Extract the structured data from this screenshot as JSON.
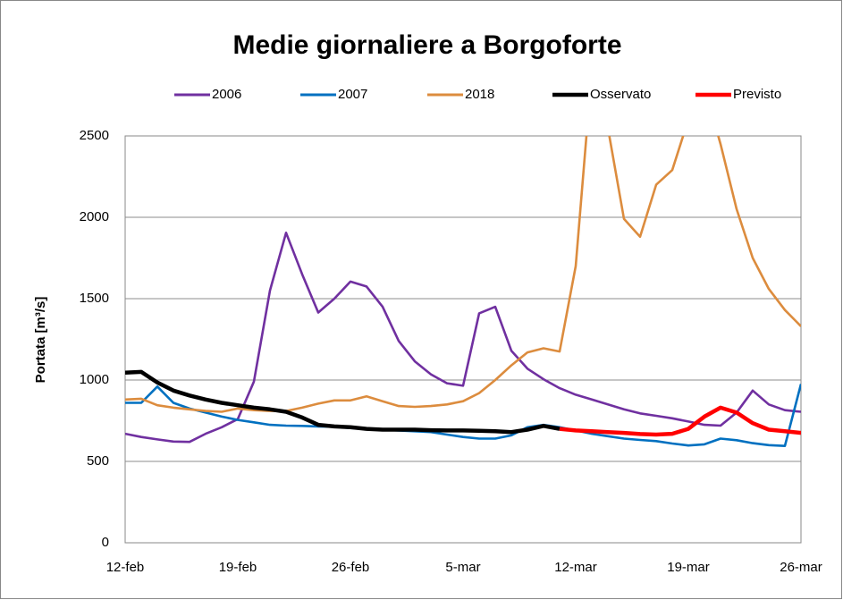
{
  "chart_data": {
    "type": "line",
    "title": "Medie giornaliere a Borgoforte",
    "y_label": "Portata [m³/s]",
    "categories": [
      "12-feb",
      null,
      null,
      null,
      null,
      null,
      null,
      "19-feb",
      null,
      null,
      null,
      null,
      null,
      null,
      "26-feb",
      null,
      null,
      null,
      null,
      null,
      null,
      "5-mar",
      null,
      null,
      null,
      null,
      null,
      null,
      "12-mar",
      null,
      null,
      null,
      null,
      null,
      null,
      "19-mar",
      null,
      null,
      null,
      null,
      null,
      null,
      "26-mar"
    ],
    "ylim": [
      0,
      2500
    ],
    "yticks": [
      0,
      500,
      1000,
      1500,
      2000,
      2500
    ],
    "grid": true,
    "legend": "top",
    "series": [
      {
        "name": "2006",
        "color": "#7030a0",
        "values": [
          670,
          650,
          635,
          622,
          620,
          670,
          710,
          760,
          990,
          1550,
          1905,
          1650,
          1415,
          1500,
          1605,
          1575,
          1450,
          1240,
          1115,
          1035,
          980,
          965,
          1410,
          1450,
          1180,
          1070,
          1005,
          950,
          910,
          880,
          850,
          820,
          795,
          780,
          765,
          745,
          725,
          720,
          800,
          935,
          850,
          815,
          805
        ]
      },
      {
        "name": "2007",
        "color": "#0070c0",
        "values": [
          860,
          860,
          960,
          860,
          825,
          800,
          775,
          755,
          740,
          725,
          720,
          718,
          715,
          713,
          705,
          700,
          695,
          690,
          685,
          680,
          665,
          650,
          640,
          640,
          660,
          710,
          725,
          710,
          690,
          670,
          655,
          640,
          632,
          625,
          610,
          598,
          605,
          640,
          630,
          612,
          600,
          595,
          975
        ]
      },
      {
        "name": "2018",
        "color": "#dc8c3e",
        "values": [
          880,
          885,
          845,
          830,
          820,
          810,
          805,
          825,
          815,
          810,
          810,
          830,
          855,
          875,
          875,
          900,
          870,
          840,
          835,
          840,
          850,
          870,
          920,
          1000,
          1090,
          1170,
          1195,
          1175,
          1700,
          2900,
          2550,
          1990,
          1880,
          2200,
          2290,
          2600,
          2800,
          2450,
          2050,
          1750,
          1560,
          1430,
          1330
        ]
      },
      {
        "name": "Osservato",
        "color": "#000000",
        "values": [
          1045,
          1050,
          985,
          935,
          905,
          880,
          860,
          845,
          830,
          820,
          805,
          770,
          725,
          715,
          710,
          700,
          695,
          695,
          695,
          692,
          690,
          690,
          688,
          685,
          680,
          695,
          718,
          700,
          null,
          null,
          null,
          null,
          null,
          null,
          null,
          null,
          null,
          null,
          null,
          null,
          null,
          null,
          null
        ]
      },
      {
        "name": "Previsto",
        "color": "#ff0000",
        "values": [
          null,
          null,
          null,
          null,
          null,
          null,
          null,
          null,
          null,
          null,
          null,
          null,
          null,
          null,
          null,
          null,
          null,
          null,
          null,
          null,
          null,
          null,
          null,
          null,
          null,
          null,
          null,
          700,
          690,
          685,
          680,
          675,
          668,
          665,
          670,
          700,
          775,
          830,
          800,
          735,
          695,
          685,
          675
        ]
      }
    ]
  }
}
